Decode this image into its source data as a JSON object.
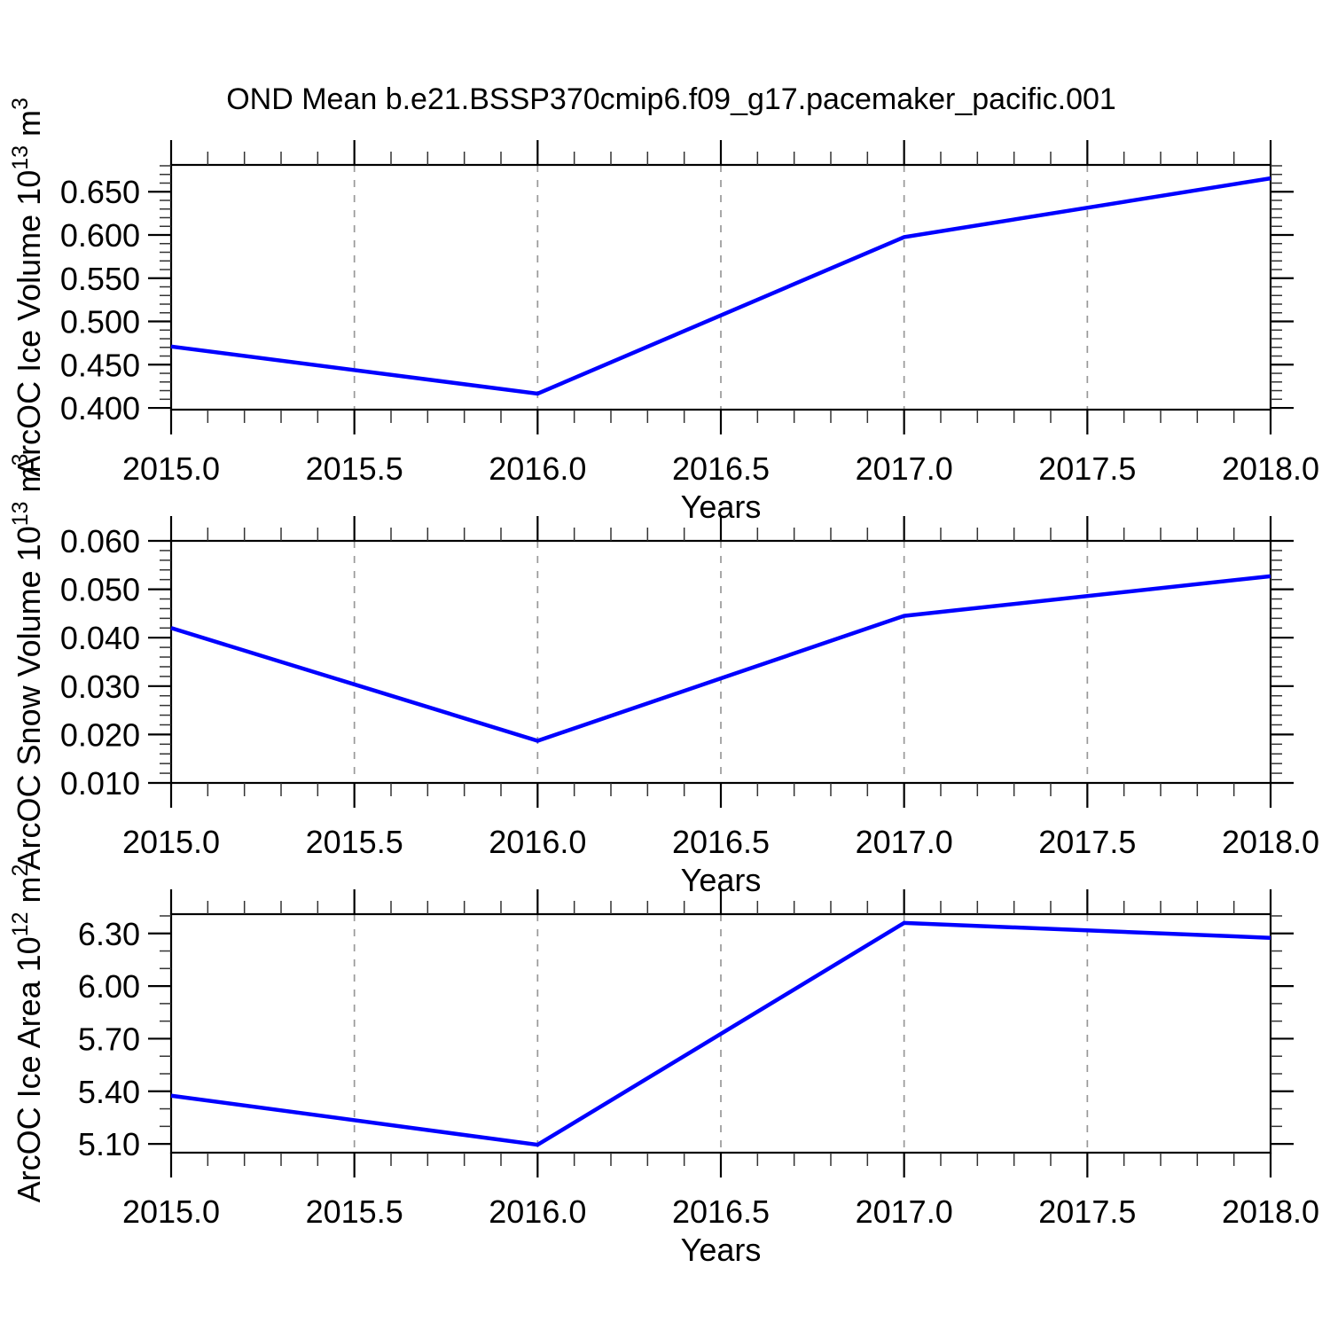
{
  "title": "OND Mean b.e21.BSSP370cmip6.f09_g17.pacemaker_pacific.001",
  "style": {
    "line_color": "#0000ff",
    "grid_color": "#999999",
    "axis_color": "#000000",
    "minor_tick_color": "#333333",
    "background": "#ffffff"
  },
  "chart_data": [
    {
      "type": "line",
      "ylabel_parts": [
        {
          "t": "ArcOC Ice Volume 10",
          "sup": false
        },
        {
          "t": "13",
          "sup": true
        },
        {
          "t": " m",
          "sup": false
        },
        {
          "t": "3",
          "sup": true
        }
      ],
      "ylabel_plain": "ArcOC Ice Volume 10^13 m^3",
      "xlabel": "Years",
      "x": [
        2015,
        2016,
        2017,
        2018
      ],
      "values": [
        0.471,
        0.4165,
        0.5975,
        0.6655
      ],
      "xlim": [
        2015,
        2018
      ],
      "ylim": [
        0.398,
        0.681
      ],
      "ytick_major": [
        0.4,
        0.45,
        0.5,
        0.55,
        0.6,
        0.65
      ],
      "ytick_labels": [
        "0.400",
        "0.450",
        "0.500",
        "0.550",
        "0.600",
        "0.650"
      ],
      "ytick_minor_step": 0.01,
      "xtick_major": [
        2015.0,
        2015.5,
        2016.0,
        2016.5,
        2017.0,
        2017.5,
        2018.0
      ],
      "xtick_labels": [
        "2015.0",
        "2015.5",
        "2016.0",
        "2016.5",
        "2017.0",
        "2017.5",
        "2018.0"
      ],
      "xtick_minor_step": 0.1,
      "grid_x": [
        2015.5,
        2016.0,
        2016.5,
        2017.0,
        2017.5
      ],
      "grid_on": true,
      "legend": "none"
    },
    {
      "type": "line",
      "ylabel_parts": [
        {
          "t": "ArcOC Snow Volume 10",
          "sup": false
        },
        {
          "t": "13",
          "sup": true
        },
        {
          "t": " m",
          "sup": false
        },
        {
          "t": "3",
          "sup": true
        }
      ],
      "ylabel_plain": "ArcOC Snow Volume 10^13 m^3",
      "xlabel": "Years",
      "x": [
        2015,
        2016,
        2017,
        2018
      ],
      "values": [
        0.042,
        0.0187,
        0.0445,
        0.0527
      ],
      "xlim": [
        2015,
        2018
      ],
      "ylim": [
        0.01,
        0.06
      ],
      "ytick_major": [
        0.01,
        0.02,
        0.03,
        0.04,
        0.05,
        0.06
      ],
      "ytick_labels": [
        "0.010",
        "0.020",
        "0.030",
        "0.040",
        "0.050",
        "0.060"
      ],
      "ytick_minor_step": 0.002,
      "xtick_major": [
        2015.0,
        2015.5,
        2016.0,
        2016.5,
        2017.0,
        2017.5,
        2018.0
      ],
      "xtick_labels": [
        "2015.0",
        "2015.5",
        "2016.0",
        "2016.5",
        "2017.0",
        "2017.5",
        "2018.0"
      ],
      "xtick_minor_step": 0.1,
      "grid_x": [
        2015.5,
        2016.0,
        2016.5,
        2017.0,
        2017.5
      ],
      "grid_on": true,
      "legend": "none"
    },
    {
      "type": "line",
      "ylabel_parts": [
        {
          "t": "ArcOC Ice Area 10",
          "sup": false
        },
        {
          "t": "12",
          "sup": true
        },
        {
          "t": " m",
          "sup": false
        },
        {
          "t": "2",
          "sup": true
        }
      ],
      "ylabel_plain": "ArcOC Ice Area 10^12 m^2",
      "xlabel": "Years",
      "x": [
        2015,
        2016,
        2017,
        2018
      ],
      "values": [
        5.375,
        5.095,
        6.36,
        6.275
      ],
      "xlim": [
        2015,
        2018
      ],
      "ylim": [
        5.05,
        6.41
      ],
      "ytick_major": [
        5.1,
        5.4,
        5.7,
        6.0,
        6.3
      ],
      "ytick_labels": [
        "5.10",
        "5.40",
        "5.70",
        "6.00",
        "6.30"
      ],
      "ytick_minor_step": 0.1,
      "xtick_major": [
        2015.0,
        2015.5,
        2016.0,
        2016.5,
        2017.0,
        2017.5,
        2018.0
      ],
      "xtick_labels": [
        "2015.0",
        "2015.5",
        "2016.0",
        "2016.5",
        "2017.0",
        "2017.5",
        "2018.0"
      ],
      "xtick_minor_step": 0.1,
      "grid_x": [
        2015.5,
        2016.0,
        2016.5,
        2017.0,
        2017.5
      ],
      "grid_on": true,
      "legend": "none"
    }
  ]
}
